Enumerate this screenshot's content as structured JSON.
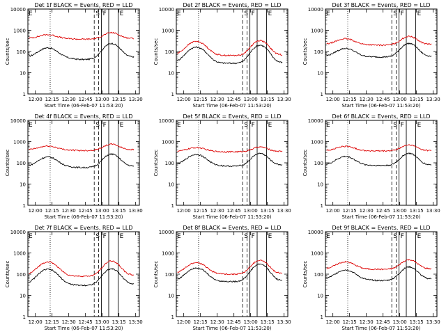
{
  "chart_data": [
    {
      "type": "line",
      "title": "Det 1f BLACK = Events, RED = LLD",
      "xlabel": "Start Time (06-Feb-07 11:53:20)",
      "ylabel": "Counts/sec",
      "x_tick_labels": [
        "12:00",
        "12:15",
        "12:30",
        "12:45",
        "13:00",
        "13:15",
        "13:30"
      ],
      "y_tick_labels": [
        "1",
        "10",
        "100",
        "1000",
        "10000"
      ],
      "ylim": [
        1,
        10000
      ],
      "y_scale": "log",
      "marker_labels": [
        "E",
        "S",
        "F",
        "E"
      ],
      "series": [
        {
          "color": "#000000",
          "base": 55,
          "peak1": 150,
          "peak2": 240,
          "dip": 42
        },
        {
          "color": "#dd0000",
          "base": 420,
          "peak1": 620,
          "peak2": 780,
          "dip": 380
        }
      ]
    },
    {
      "type": "line",
      "title": "Det 2f BLACK = Events, RED = LLD",
      "xlabel": "Start Time (06-Feb-07 11:53:20)",
      "ylabel": "Counts/sec",
      "x_tick_labels": [
        "12:00",
        "12:15",
        "12:30",
        "12:45",
        "13:00",
        "13:15",
        "13:30"
      ],
      "y_tick_labels": [
        "1",
        "10",
        "100",
        "1000",
        "10000"
      ],
      "ylim": [
        1,
        10000
      ],
      "y_scale": "log",
      "marker_labels": [
        "E",
        "S",
        "F",
        "E"
      ],
      "series": [
        {
          "color": "#000000",
          "base": 30,
          "peak1": 160,
          "peak2": 200,
          "dip": 28
        },
        {
          "color": "#dd0000",
          "base": 70,
          "peak1": 300,
          "peak2": 330,
          "dip": 65
        }
      ]
    },
    {
      "type": "line",
      "title": "Det 3f BLACK = Events, RED = LLD",
      "xlabel": "Start Time (06-Feb-07 11:53:20)",
      "ylabel": "Counts/sec",
      "x_tick_labels": [
        "12:00",
        "12:15",
        "12:30",
        "12:45",
        "13:00",
        "13:15",
        "13:30"
      ],
      "y_tick_labels": [
        "1",
        "10",
        "100",
        "1000",
        "10000"
      ],
      "ylim": [
        1,
        10000
      ],
      "y_scale": "log",
      "marker_labels": [
        "E",
        "S",
        "F",
        "E"
      ],
      "series": [
        {
          "color": "#000000",
          "base": 60,
          "peak1": 140,
          "peak2": 240,
          "dip": 55
        },
        {
          "color": "#dd0000",
          "base": 220,
          "peak1": 400,
          "peak2": 520,
          "dip": 200
        }
      ]
    },
    {
      "type": "line",
      "title": "Det 4f BLACK = Events, RED = LLD",
      "xlabel": "Start Time (06-Feb-07 11:53:20)",
      "ylabel": "Counts/sec",
      "x_tick_labels": [
        "12:00",
        "12:15",
        "12:30",
        "12:45",
        "13:00",
        "13:15",
        "13:30"
      ],
      "y_tick_labels": [
        "1",
        "10",
        "100",
        "1000",
        "10000"
      ],
      "ylim": [
        1,
        10000
      ],
      "y_scale": "log",
      "marker_labels": [
        "E",
        "S",
        "F",
        "E"
      ],
      "series": [
        {
          "color": "#000000",
          "base": 70,
          "peak1": 190,
          "peak2": 260,
          "dip": 60
        },
        {
          "color": "#dd0000",
          "base": 420,
          "peak1": 620,
          "peak2": 760,
          "dip": 380
        }
      ]
    },
    {
      "type": "line",
      "title": "Det 5f BLACK = Events, RED = LLD",
      "xlabel": "Start Time (06-Feb-07 11:53:20)",
      "ylabel": "Counts/sec",
      "x_tick_labels": [
        "12:00",
        "12:15",
        "12:30",
        "12:45",
        "13:00",
        "13:15",
        "13:30"
      ],
      "y_tick_labels": [
        "1",
        "10",
        "100",
        "1000",
        "10000"
      ],
      "ylim": [
        1,
        10000
      ],
      "y_scale": "log",
      "marker_labels": [
        "E",
        "S",
        "F",
        "E"
      ],
      "series": [
        {
          "color": "#000000",
          "base": 80,
          "peak1": 250,
          "peak2": 280,
          "dip": 70
        },
        {
          "color": "#dd0000",
          "base": 350,
          "peak1": 520,
          "peak2": 560,
          "dip": 330
        }
      ]
    },
    {
      "type": "line",
      "title": "Det 6f BLACK = Events, RED = LLD",
      "xlabel": "Start Time (06-Feb-07 11:53:20)",
      "ylabel": "Counts/sec",
      "x_tick_labels": [
        "12:00",
        "12:15",
        "12:30",
        "12:45",
        "13:00",
        "13:15",
        "13:30"
      ],
      "y_tick_labels": [
        "1",
        "10",
        "100",
        "1000",
        "10000"
      ],
      "ylim": [
        1,
        10000
      ],
      "y_scale": "log",
      "marker_labels": [
        "E",
        "S",
        "F",
        "E"
      ],
      "series": [
        {
          "color": "#000000",
          "base": 80,
          "peak1": 200,
          "peak2": 280,
          "dip": 75
        },
        {
          "color": "#dd0000",
          "base": 380,
          "peak1": 600,
          "peak2": 700,
          "dip": 360
        }
      ]
    },
    {
      "type": "line",
      "title": "Det 7f BLACK = Events, RED = LLD",
      "xlabel": "Start Time (06-Feb-07 11:53:20)",
      "ylabel": "Counts/sec",
      "x_tick_labels": [
        "12:00",
        "12:15",
        "12:30",
        "12:45",
        "13:00",
        "13:15",
        "13:30"
      ],
      "y_tick_labels": [
        "1",
        "10",
        "100",
        "1000",
        "10000"
      ],
      "ylim": [
        1,
        10000
      ],
      "y_scale": "log",
      "marker_labels": [
        "E",
        "S",
        "F",
        "E"
      ],
      "series": [
        {
          "color": "#000000",
          "base": 35,
          "peak1": 170,
          "peak2": 180,
          "dip": 30
        },
        {
          "color": "#dd0000",
          "base": 90,
          "peak1": 380,
          "peak2": 420,
          "dip": 80
        }
      ]
    },
    {
      "type": "line",
      "title": "Det 8f BLACK = Events, RED = LLD",
      "xlabel": "Start Time (06-Feb-07 11:53:20)",
      "ylabel": "Counts/sec",
      "x_tick_labels": [
        "12:00",
        "12:15",
        "12:30",
        "12:45",
        "13:00",
        "13:15",
        "13:30"
      ],
      "y_tick_labels": [
        "1",
        "10",
        "100",
        "1000",
        "10000"
      ],
      "ylim": [
        1,
        10000
      ],
      "y_scale": "log",
      "marker_labels": [
        "E",
        "S",
        "F",
        "E"
      ],
      "series": [
        {
          "color": "#000000",
          "base": 50,
          "peak1": 200,
          "peak2": 300,
          "dip": 45
        },
        {
          "color": "#dd0000",
          "base": 110,
          "peak1": 350,
          "peak2": 450,
          "dip": 100
        }
      ]
    },
    {
      "type": "line",
      "title": "Det 9f BLACK = Events, RED = LLD",
      "xlabel": "Start Time (06-Feb-07 11:53:20)",
      "ylabel": "Counts/sec",
      "x_tick_labels": [
        "12:00",
        "12:15",
        "12:30",
        "12:45",
        "13:00",
        "13:15",
        "13:30"
      ],
      "y_tick_labels": [
        "1",
        "10",
        "100",
        "1000",
        "10000"
      ],
      "ylim": [
        1,
        10000
      ],
      "y_scale": "log",
      "marker_labels": [
        "E",
        "S",
        "F",
        "E"
      ],
      "series": [
        {
          "color": "#000000",
          "base": 60,
          "peak1": 160,
          "peak2": 220,
          "dip": 50
        },
        {
          "color": "#dd0000",
          "base": 180,
          "peak1": 380,
          "peak2": 480,
          "dip": 170
        }
      ]
    }
  ]
}
